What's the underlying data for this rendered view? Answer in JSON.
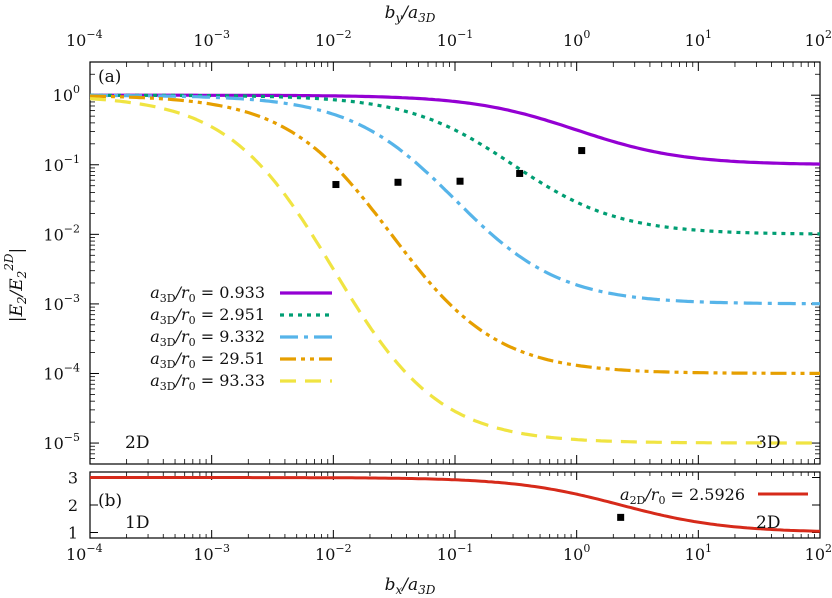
{
  "chart_data": [
    {
      "type": "line",
      "panel_label": "(a)",
      "x_scale": "log",
      "y_scale": "log",
      "xlim": [
        0.0001,
        100
      ],
      "ylim": [
        5e-06,
        3
      ],
      "top_axis_label": "b_y/a_3D",
      "ylabel": "|E_2/E_2^2D|",
      "x_tick_exponents": [
        "-4",
        "-3",
        "-2",
        "-1",
        "0",
        "1",
        "2"
      ],
      "y_tick_exponents": [
        "0",
        "-1",
        "-2",
        "-3",
        "-4",
        "-5"
      ],
      "region_labels": {
        "left": "2D",
        "right": "3D"
      },
      "series": [
        {
          "name": "a_3D/r_0 = 0.933",
          "param_label": "a_{3D}/r_0",
          "param_value": "0.933",
          "color": "#9400d3",
          "dash": "solid",
          "x_mid": 1.0,
          "y_high": 1.0,
          "y_low": 0.1,
          "marker": {
            "x": 1.1,
            "y": 0.16
          }
        },
        {
          "name": "a_3D/r_0 = 2.951",
          "param_label": "a_{3D}/r_0",
          "param_value": "2.951",
          "color": "#009e73",
          "dash": "dot",
          "x_mid": 0.3,
          "y_high": 1.0,
          "y_low": 0.01,
          "marker": {
            "x": 0.34,
            "y": 0.075
          }
        },
        {
          "name": "a_3D/r_0 = 9.332",
          "param_label": "a_{3D}/r_0",
          "param_value": "9.332",
          "color": "#56b4e9",
          "dash": "dashdot",
          "x_mid": 0.1,
          "y_high": 1.0,
          "y_low": 0.001,
          "marker": {
            "x": 0.11,
            "y": 0.058
          }
        },
        {
          "name": "a_3D/r_0 = 29.51",
          "param_label": "a_{3D}/r_0",
          "param_value": "29.51",
          "color": "#e69f00",
          "dash": "dashdotdot",
          "x_mid": 0.03,
          "y_high": 1.0,
          "y_low": 0.0001,
          "marker": {
            "x": 0.034,
            "y": 0.056
          }
        },
        {
          "name": "a_3D/r_0 = 93.33",
          "param_label": "a_{3D}/r_0",
          "param_value": "93.33",
          "color": "#f0e442",
          "dash": "dashed",
          "x_mid": 0.01,
          "y_high": 1.0,
          "y_low": 1e-05,
          "marker": {
            "x": 0.0105,
            "y": 0.052
          }
        }
      ]
    },
    {
      "type": "line",
      "panel_label": "(b)",
      "x_scale": "log",
      "y_scale": "linear",
      "xlim": [
        0.0001,
        100
      ],
      "ylim": [
        0.8,
        3.2
      ],
      "xlabel": "b_x/a_3D",
      "x_tick_exponents": [
        "-4",
        "-3",
        "-2",
        "-1",
        "0",
        "1",
        "2"
      ],
      "y_ticks": [
        "1",
        "2",
        "3"
      ],
      "region_labels": {
        "left": "1D",
        "right": "2D"
      },
      "series": [
        {
          "name": "a_2D/r_0 = 2.5926",
          "param_label": "a_{2D}/r_0",
          "param_value": "2.5926",
          "color": "#d62a1a",
          "dash": "solid",
          "x_mid": 2.3,
          "y_high": 3.0,
          "y_low": 1.0,
          "marker": {
            "x": 2.3,
            "y": 1.55
          }
        }
      ]
    }
  ]
}
